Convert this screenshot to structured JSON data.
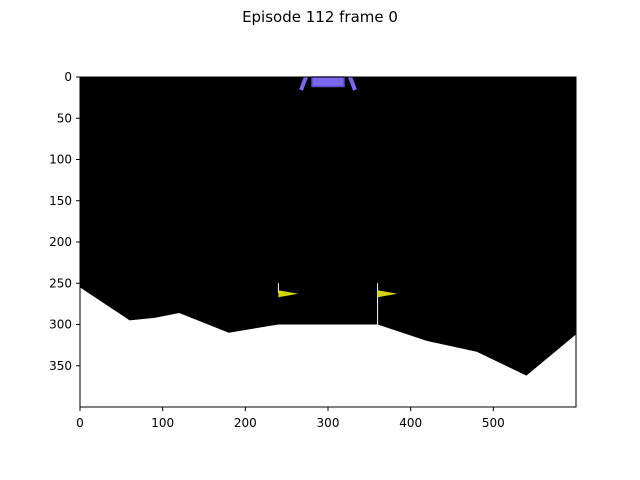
{
  "figure": {
    "title": "Episode 112 frame 0"
  },
  "axes": {
    "x_ticks": [
      0,
      100,
      200,
      300,
      400,
      500
    ],
    "y_ticks": [
      0,
      50,
      100,
      150,
      200,
      250,
      300,
      350
    ],
    "x_range": [
      0,
      600
    ],
    "y_range": [
      400,
      0
    ]
  },
  "scene": {
    "sky_color": "#000000",
    "terrain_color": "#ffffff",
    "terrain_profile": [
      [
        0,
        255
      ],
      [
        60,
        295
      ],
      [
        90,
        292
      ],
      [
        120,
        286
      ],
      [
        180,
        310
      ],
      [
        240,
        300
      ],
      [
        360,
        300
      ],
      [
        420,
        320
      ],
      [
        480,
        333
      ],
      [
        540,
        362
      ],
      [
        600,
        312
      ]
    ],
    "lander": {
      "body_color": "#7b68ee",
      "center_x": 300,
      "top_y": 0,
      "bottom_y": 14
    },
    "flags": [
      {
        "x": 240,
        "pole_top": 250,
        "pole_bottom": 262,
        "color": "#d4d400"
      },
      {
        "x": 360,
        "pole_top": 250,
        "pole_bottom": 300,
        "color": "#d4d400"
      }
    ]
  }
}
